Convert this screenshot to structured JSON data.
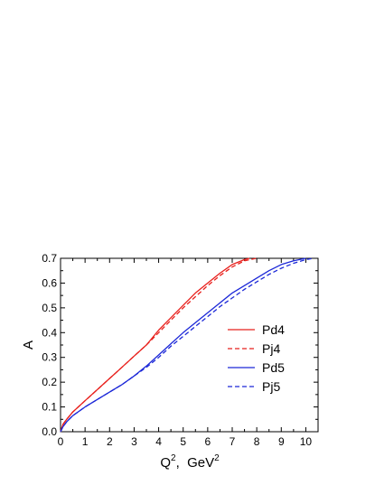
{
  "chart_data": {
    "type": "line",
    "title": "",
    "xlabel": "Q",
    "xlabel_sup": "2",
    "xlabel_unit": ",  GeV",
    "xlabel_unit_sup": "2",
    "ylabel": "A",
    "xlim": [
      0,
      10.5
    ],
    "ylim": [
      0,
      0.7
    ],
    "x_ticks": [
      "0",
      "1",
      "2",
      "3",
      "4",
      "5",
      "6",
      "7",
      "8",
      "9",
      "10"
    ],
    "y_ticks": [
      "0.0",
      "0.1",
      "0.2",
      "0.3",
      "0.4",
      "0.5",
      "0.6",
      "0.7"
    ],
    "legend_position": "right-center",
    "series": [
      {
        "name": "Pd4",
        "color": "#e8201c",
        "dash": "solid",
        "x": [
          0,
          0.1,
          0.25,
          0.5,
          1,
          1.5,
          2,
          2.5,
          3,
          3.5,
          4,
          4.5,
          5,
          5.5,
          6,
          6.5,
          7,
          7.5,
          7.7
        ],
        "y": [
          0,
          0.03,
          0.05,
          0.08,
          0.125,
          0.17,
          0.215,
          0.26,
          0.305,
          0.35,
          0.41,
          0.46,
          0.51,
          0.56,
          0.6,
          0.64,
          0.675,
          0.695,
          0.7
        ]
      },
      {
        "name": "Pj4",
        "color": "#e8201c",
        "dash": "dashed",
        "x": [
          0,
          0.1,
          0.25,
          0.5,
          1,
          1.5,
          2,
          2.5,
          3,
          3.5,
          4,
          4.5,
          5,
          5.5,
          6,
          6.5,
          7,
          7.5,
          8
        ],
        "y": [
          0,
          0.03,
          0.05,
          0.08,
          0.125,
          0.17,
          0.215,
          0.26,
          0.305,
          0.35,
          0.4,
          0.45,
          0.5,
          0.545,
          0.59,
          0.63,
          0.665,
          0.69,
          0.7
        ]
      },
      {
        "name": "Pd5",
        "color": "#1c28d8",
        "dash": "solid",
        "x": [
          0,
          0.1,
          0.25,
          0.5,
          1,
          1.5,
          2,
          2.5,
          3,
          3.5,
          4,
          4.5,
          5,
          5.5,
          6,
          6.5,
          7,
          7.5,
          8,
          8.5,
          9,
          9.5,
          10
        ],
        "y": [
          0,
          0.02,
          0.04,
          0.065,
          0.1,
          0.13,
          0.16,
          0.19,
          0.225,
          0.265,
          0.31,
          0.355,
          0.4,
          0.44,
          0.48,
          0.52,
          0.56,
          0.59,
          0.62,
          0.65,
          0.675,
          0.69,
          0.7
        ]
      },
      {
        "name": "Pj5",
        "color": "#1c28d8",
        "dash": "dashed",
        "x": [
          0,
          0.1,
          0.25,
          0.5,
          1,
          1.5,
          2,
          2.5,
          3,
          3.5,
          4,
          4.5,
          5,
          5.5,
          6,
          6.5,
          7,
          7.5,
          8,
          8.5,
          9,
          9.5,
          10,
          10.3
        ],
        "y": [
          0,
          0.02,
          0.04,
          0.065,
          0.1,
          0.13,
          0.16,
          0.19,
          0.225,
          0.26,
          0.3,
          0.345,
          0.385,
          0.425,
          0.465,
          0.505,
          0.54,
          0.575,
          0.605,
          0.635,
          0.66,
          0.68,
          0.695,
          0.7
        ]
      }
    ]
  }
}
